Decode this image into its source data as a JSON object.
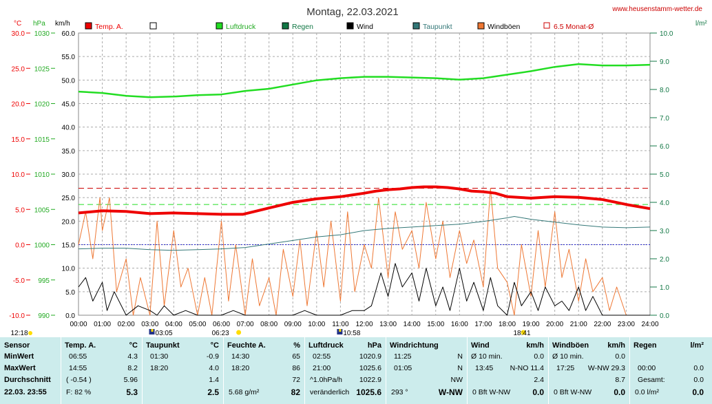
{
  "header": {
    "title": "Montag, 22.03.2021",
    "site": "www.heusenstamm-wetter.de"
  },
  "chart_data": {
    "type": "line",
    "title": "Montag, 22.03.2021",
    "date": "22.03.2021",
    "legend": [
      {
        "label": "Temp. A.",
        "color": "#ee0000"
      },
      {
        "label": "",
        "color": "#ffffff"
      },
      {
        "label": "Luftdruck",
        "color": "#22dd22"
      },
      {
        "label": "Regen",
        "color": "#117744"
      },
      {
        "label": "Wind",
        "color": "#000000"
      },
      {
        "label": "Taupunkt",
        "color": "#337777"
      },
      {
        "label": "Windböen",
        "color": "#ee7733"
      },
      {
        "label": "6.5 Monat-Ø",
        "color": "#cc0000",
        "outline": true
      }
    ],
    "axis_units": {
      "temp": "°C",
      "pressure": "hPa",
      "wind": "km/h",
      "rain": "l/m²"
    },
    "temp_axis": {
      "min": -10,
      "max": 30,
      "ticks": [
        "30.0",
        "25.0",
        "20.0",
        "15.0",
        "10.0",
        "5.0",
        "0.0",
        "-5.0",
        "-10.0"
      ]
    },
    "pressure_axis": {
      "min": 990,
      "max": 1030,
      "ticks": [
        "1030",
        "1025",
        "1020",
        "1015",
        "1010",
        "1005",
        "1000",
        "995",
        "990"
      ]
    },
    "wind_axis": {
      "min": 0,
      "max": 60,
      "ticks": [
        "60.0",
        "55.0",
        "50.0",
        "45.0",
        "40.0",
        "35.0",
        "30.0",
        "25.0",
        "20.0",
        "15.0",
        "10.0",
        "5.0",
        "0.0"
      ]
    },
    "rain_axis": {
      "min": 0,
      "max": 10,
      "ticks": [
        "10.0",
        "9.0",
        "8.0",
        "7.0",
        "6.0",
        "5.0",
        "4.0",
        "3.0",
        "2.0",
        "1.0",
        "0.0"
      ]
    },
    "x_ticks": [
      "00:00",
      "01:00",
      "02:00",
      "03:00",
      "04:00",
      "05:00",
      "06:00",
      "07:00",
      "08:00",
      "09:00",
      "10:00",
      "11:00",
      "12:00",
      "13:00",
      "14:00",
      "15:00",
      "16:00",
      "17:00",
      "18:00",
      "19:00",
      "20:00",
      "21:00",
      "22:00",
      "23:00",
      "24:00"
    ],
    "x_unit": "hour",
    "reference_lines": {
      "temp_month_avg": 8.0,
      "pressure_month_avg": 1005.7,
      "temp_zero": 0.0
    },
    "events": [
      {
        "hour": 3.08,
        "label": "03:05",
        "type": "moonset"
      },
      {
        "hour": 6.38,
        "label": "06:23",
        "type": "sunrise"
      },
      {
        "hour": 10.97,
        "label": "10:58",
        "type": "moonrise"
      },
      {
        "hour": 18.68,
        "label": "18:41",
        "type": "sunset"
      },
      {
        "hour": 12.3,
        "label": "12:18",
        "type": "noon"
      }
    ],
    "series": [
      {
        "name": "Temp. A.",
        "color": "#ee0000",
        "axis": "temp",
        "x": [
          0,
          1,
          2,
          3,
          4,
          5,
          6,
          6.9,
          8,
          9,
          10,
          11,
          12,
          12.5,
          13,
          13.5,
          14,
          14.5,
          15,
          15.5,
          16,
          16.5,
          17,
          17.5,
          18,
          19,
          20,
          21,
          22,
          23,
          24
        ],
        "values": [
          4.5,
          4.8,
          4.7,
          4.4,
          4.5,
          4.4,
          4.3,
          4.3,
          5.2,
          6.0,
          6.5,
          6.8,
          7.3,
          7.6,
          7.8,
          7.9,
          8.1,
          8.2,
          8.2,
          8.1,
          7.9,
          7.6,
          7.5,
          7.3,
          6.8,
          6.6,
          6.8,
          6.7,
          6.4,
          5.7,
          5.1
        ]
      },
      {
        "name": "Taupunkt",
        "color": "#337777",
        "axis": "temp",
        "x": [
          0,
          1,
          2,
          3,
          4,
          5,
          6,
          7,
          8,
          9,
          10,
          11,
          12,
          13,
          14,
          15,
          16,
          17,
          18,
          18.3,
          19,
          20,
          21,
          22,
          23,
          24
        ],
        "values": [
          -0.6,
          -0.5,
          -0.5,
          -0.7,
          -0.8,
          -0.7,
          -0.6,
          -0.4,
          0.1,
          0.6,
          1.1,
          1.4,
          2.0,
          2.3,
          2.5,
          2.7,
          2.9,
          3.3,
          3.8,
          4.0,
          3.6,
          3.2,
          2.8,
          2.5,
          2.4,
          2.5
        ]
      },
      {
        "name": "Luftdruck",
        "color": "#22dd22",
        "axis": "pressure",
        "x": [
          0,
          1,
          2,
          3,
          4,
          5,
          6,
          7,
          8,
          9,
          10,
          11,
          12,
          13,
          14,
          15,
          16,
          17,
          18,
          19,
          20,
          21,
          22,
          23,
          24
        ],
        "values": [
          1021.7,
          1021.5,
          1021.1,
          1020.9,
          1021.0,
          1021.2,
          1021.3,
          1021.8,
          1022.1,
          1022.7,
          1023.3,
          1023.6,
          1023.8,
          1023.8,
          1023.7,
          1023.6,
          1023.4,
          1023.6,
          1024.1,
          1024.6,
          1025.2,
          1025.6,
          1025.4,
          1025.4,
          1025.5
        ]
      },
      {
        "name": "Wind",
        "color": "#000000",
        "axis": "wind",
        "x": [
          0,
          0.3,
          0.6,
          1,
          1.2,
          1.5,
          2,
          2.5,
          3,
          3.3,
          3.6,
          4,
          4.5,
          5,
          5.5,
          6,
          6.5,
          7,
          7.5,
          8,
          8.5,
          9,
          9.5,
          10,
          10.5,
          11,
          11.5,
          12,
          12.3,
          12.7,
          13,
          13.3,
          13.6,
          14,
          14.3,
          14.6,
          15,
          15.3,
          15.6,
          16,
          16.3,
          16.6,
          17,
          17.3,
          17.6,
          18,
          18.3,
          18.6,
          19,
          19.3,
          19.6,
          20,
          20.3,
          20.6,
          21,
          21.3,
          21.6,
          22,
          22.5,
          23,
          23.5,
          24
        ],
        "values": [
          6,
          8,
          3,
          7,
          1,
          5,
          0,
          2,
          1,
          0,
          2,
          0,
          1,
          0,
          0,
          0,
          1,
          0,
          0,
          0,
          0,
          0,
          1,
          0,
          0,
          0,
          1,
          1,
          2,
          9,
          4,
          11,
          6,
          9,
          3,
          10,
          2,
          6,
          1,
          10,
          3,
          7,
          1,
          8,
          2,
          0,
          7,
          2,
          5,
          1,
          6,
          2,
          3,
          1,
          6,
          1,
          4,
          0,
          0,
          0,
          0,
          0
        ]
      },
      {
        "name": "Windböen",
        "color": "#ee7733",
        "axis": "wind",
        "x": [
          0,
          0.3,
          0.6,
          0.9,
          1,
          1.3,
          1.6,
          2,
          2.3,
          2.6,
          3,
          3.3,
          3.6,
          4,
          4.3,
          4.6,
          5,
          5.3,
          5.6,
          6,
          6.3,
          6.6,
          7,
          7.3,
          7.6,
          8,
          8.3,
          8.6,
          9,
          9.3,
          9.6,
          10,
          10.3,
          10.6,
          11,
          11.3,
          11.6,
          12,
          12.3,
          12.6,
          13,
          13.3,
          13.6,
          14,
          14.3,
          14.6,
          15,
          15.3,
          15.6,
          16,
          16.3,
          16.6,
          17,
          17.3,
          17.6,
          18,
          18.3,
          18.6,
          19,
          19.3,
          19.6,
          20,
          20.3,
          20.6,
          21,
          21.3,
          21.6,
          22,
          22.3,
          22.6,
          23,
          23.5,
          24
        ],
        "values": [
          15,
          22,
          12,
          25,
          18,
          25,
          5,
          12,
          0,
          8,
          0,
          20,
          2,
          18,
          6,
          10,
          0,
          8,
          0,
          20,
          3,
          15,
          0,
          12,
          2,
          8,
          0,
          14,
          4,
          16,
          2,
          18,
          6,
          20,
          3,
          22,
          5,
          15,
          10,
          25,
          8,
          22,
          14,
          18,
          10,
          24,
          12,
          20,
          8,
          18,
          11,
          16,
          6,
          27,
          10,
          7,
          0,
          15,
          4,
          18,
          6,
          22,
          8,
          14,
          3,
          12,
          5,
          8,
          1,
          6,
          0,
          0,
          0
        ]
      }
    ]
  },
  "table": {
    "sensor": {
      "header": "Sensor",
      "min": "MinWert",
      "max": "MaxWert",
      "avg": "Durchschnitt",
      "date": "22.03. 23:55"
    },
    "temp": {
      "header": "Temp. A.",
      "unit": "°C",
      "min_time": "06:55",
      "min": "4.3",
      "max_time": "14:55",
      "max": "8.2",
      "avg_note": "( -0.54 )",
      "avg": "5.96",
      "hum": "F: 82 %",
      "current": "5.3"
    },
    "dew": {
      "header": "Taupunkt",
      "unit": "°C",
      "min_time": "01:30",
      "min": "-0.9",
      "max_time": "18:20",
      "max": "4.0",
      "avg": "1.4",
      "current": "2.5"
    },
    "hum": {
      "header": "Feuchte A.",
      "unit": "%",
      "min_time": "14:30",
      "min": "65",
      "max_time": "18:20",
      "max": "86",
      "avg": "72",
      "abs": "5.68 g/m²",
      "current": "82"
    },
    "press": {
      "header": "Luftdruck",
      "unit": "hPa",
      "min_time": "02:55",
      "min": "1020.9",
      "max_time": "21:00",
      "max": "1025.6",
      "trend": "^1.0hPa/h",
      "avg": "1022.9",
      "state": "veränderlich",
      "current": "1025.6"
    },
    "dir": {
      "header": "Windrichtung",
      "min_time": "11:25",
      "min": "N",
      "max_time": "01:05",
      "max": "N",
      "avg": "NW",
      "deg": "293 °",
      "current": "W-NW"
    },
    "wind": {
      "header": "Wind",
      "unit": "km/h",
      "min_label": "Ø 10 min.",
      "min": "0.0",
      "max_time": "13:45",
      "max": "N-NO 11.4",
      "avg": "2.4",
      "bft": "0 Bft W-NW",
      "current": "0.0"
    },
    "gust": {
      "header": "Windböen",
      "unit": "km/h",
      "min_label": "Ø 10 min.",
      "min": "0.0",
      "max_time": "17:25",
      "max": "W-NW 29.3",
      "avg": "8.7",
      "bft": "0 Bft W-NW",
      "current": "0.0"
    },
    "rain": {
      "header": "Regen",
      "unit": "l/m²",
      "min_time": "00:00",
      "min": "0.0",
      "total_label": "Gesamt:",
      "total": "0.0",
      "rate": "0.0 l/m²",
      "current": "0.0"
    }
  }
}
